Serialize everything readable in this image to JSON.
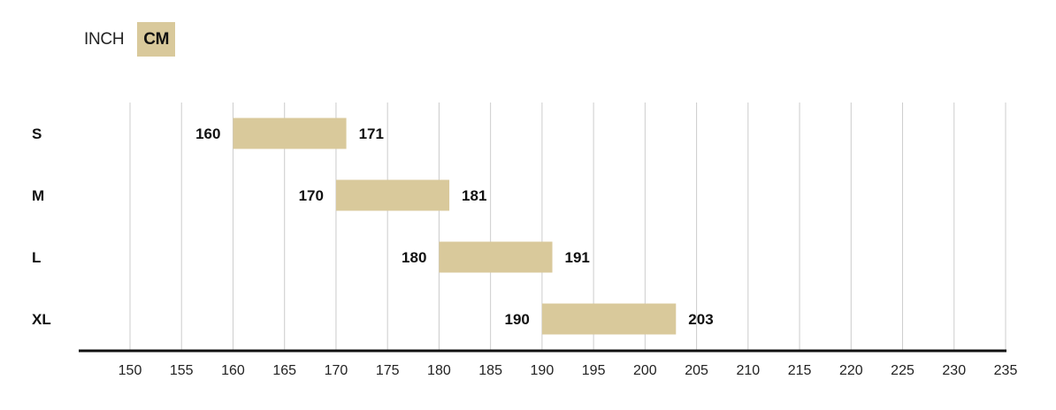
{
  "unit_toggle": {
    "options": [
      "INCH",
      "CM"
    ],
    "selected": "CM"
  },
  "colors": {
    "bar": "#d9c99b",
    "grid": "#cccccc",
    "axis": "#111111"
  },
  "chart_data": {
    "type": "bar",
    "orientation": "horizontal-range",
    "categories": [
      "S",
      "M",
      "L",
      "XL"
    ],
    "ranges": [
      {
        "size": "S",
        "min": 160,
        "max": 171
      },
      {
        "size": "M",
        "min": 170,
        "max": 181
      },
      {
        "size": "L",
        "min": 180,
        "max": 191
      },
      {
        "size": "XL",
        "min": 190,
        "max": 203
      }
    ],
    "xticks": [
      150,
      155,
      160,
      165,
      170,
      175,
      180,
      185,
      190,
      195,
      200,
      205,
      210,
      215,
      220,
      225,
      230,
      235
    ],
    "xlim": [
      145,
      235
    ],
    "grid": true
  }
}
